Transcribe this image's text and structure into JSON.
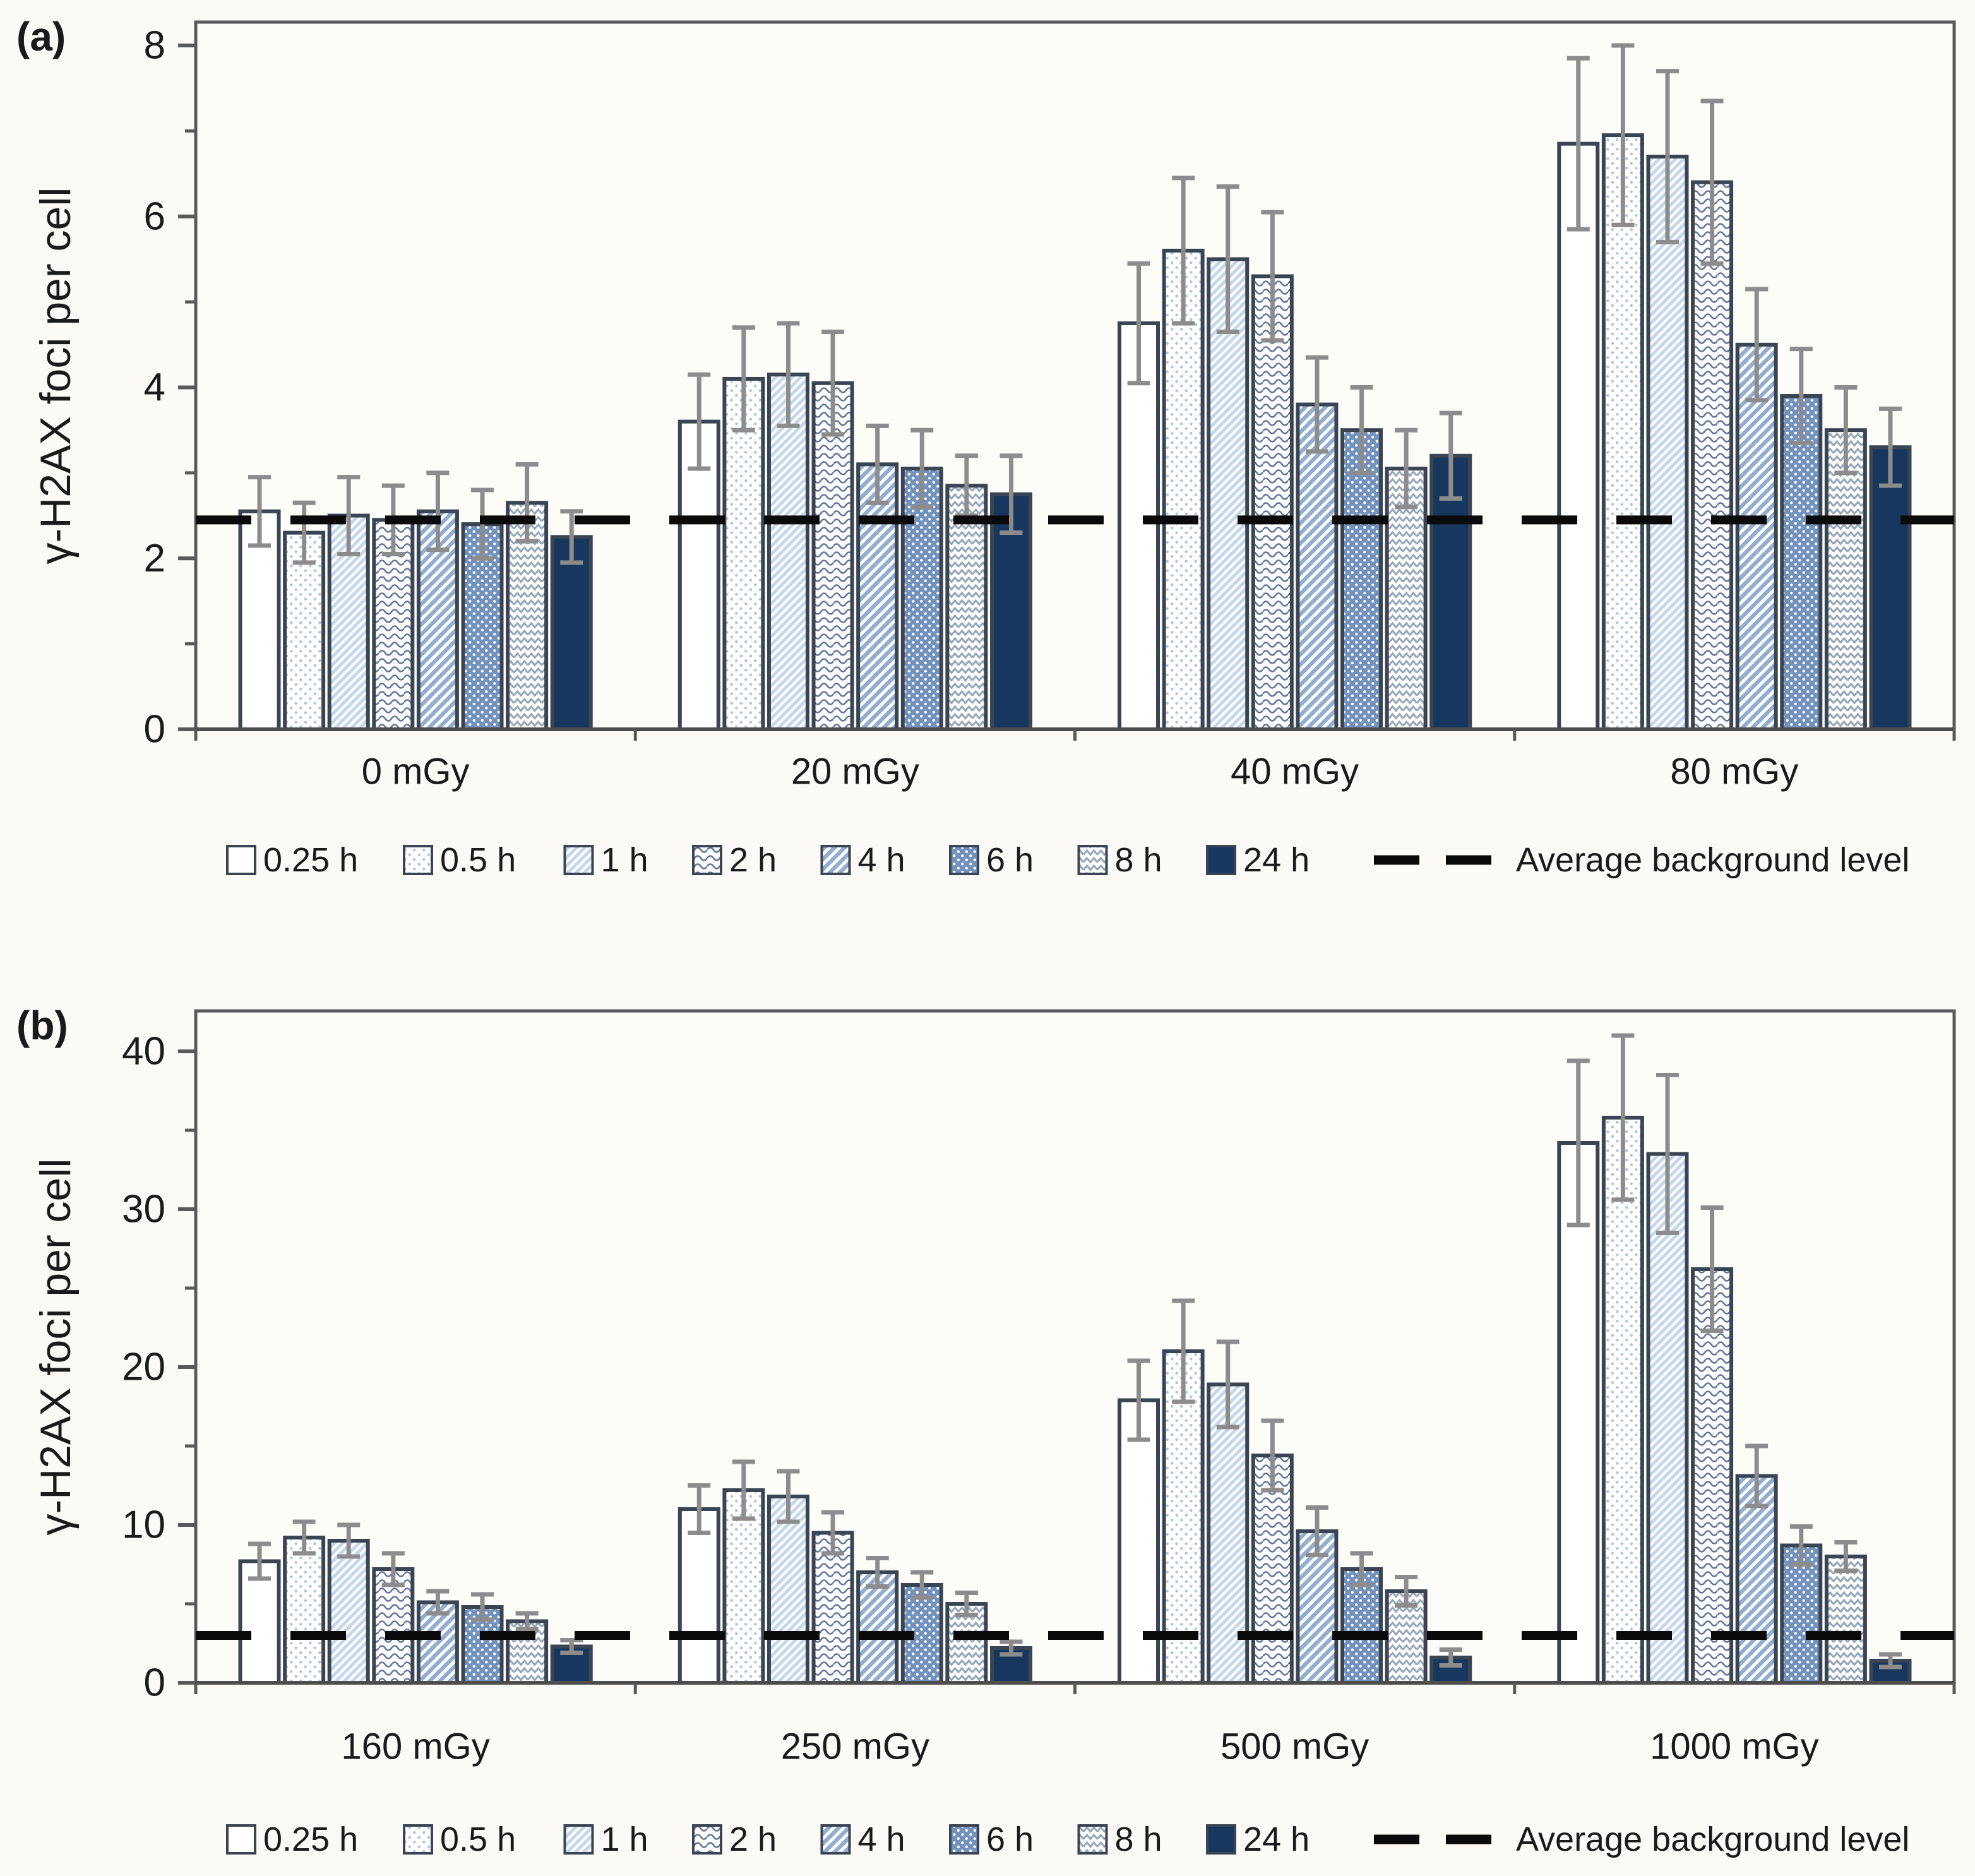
{
  "figure": {
    "panel_a_label": "(a)",
    "panel_b_label": "(b)",
    "y_axis_label": "γ-H2AX foci per cell"
  },
  "legend": {
    "entries": [
      {
        "label": "0.25 h",
        "pattern": "plain-white"
      },
      {
        "label": "0.5 h",
        "pattern": "dots-light"
      },
      {
        "label": "1 h",
        "pattern": "diag-light"
      },
      {
        "label": "2 h",
        "pattern": "squiggle"
      },
      {
        "label": "4 h",
        "pattern": "diag-blue"
      },
      {
        "label": "6 h",
        "pattern": "dots-blue"
      },
      {
        "label": "8 h",
        "pattern": "chevron"
      },
      {
        "label": "24 h",
        "pattern": "solid-navy"
      }
    ],
    "dashed_label": "Average background level"
  },
  "colors": {
    "navy": "#17375e",
    "medium_blue": "#7291bd",
    "steel_blue": "#92adcf",
    "light_blue": "#c7d7eb",
    "pale_dot": "#b3c6e0",
    "squiggle_stroke": "#61759a",
    "chevron_stroke": "#97a6ba",
    "bar_outline": "#3a4452",
    "error_bar": "#8c8c8c",
    "axis": "#595959",
    "dashed_line": "#0a0a0a",
    "background": "#fbfaf6"
  },
  "chart_data": [
    {
      "type": "bar",
      "panel": "a",
      "ylabel": "γ-H2AX foci per cell",
      "categories": [
        "0 mGy",
        "20 mGy",
        "40 mGy",
        "80 mGy"
      ],
      "series": [
        {
          "name": "0.25 h",
          "pattern": "plain-white",
          "values": [
            2.55,
            3.6,
            4.75,
            6.85
          ],
          "errors": [
            0.4,
            0.55,
            0.7,
            1.0
          ]
        },
        {
          "name": "0.5 h",
          "pattern": "dots-light",
          "values": [
            2.3,
            4.1,
            5.6,
            6.95
          ],
          "errors": [
            0.35,
            0.6,
            0.85,
            1.05
          ]
        },
        {
          "name": "1 h",
          "pattern": "diag-light",
          "values": [
            2.5,
            4.15,
            5.5,
            6.7
          ],
          "errors": [
            0.45,
            0.6,
            0.85,
            1.0
          ]
        },
        {
          "name": "2 h",
          "pattern": "squiggle",
          "values": [
            2.45,
            4.05,
            5.3,
            6.4
          ],
          "errors": [
            0.4,
            0.6,
            0.75,
            0.95
          ]
        },
        {
          "name": "4 h",
          "pattern": "diag-blue",
          "values": [
            2.55,
            3.1,
            3.8,
            4.5
          ],
          "errors": [
            0.45,
            0.45,
            0.55,
            0.65
          ]
        },
        {
          "name": "6 h",
          "pattern": "dots-blue",
          "values": [
            2.4,
            3.05,
            3.5,
            3.9
          ],
          "errors": [
            0.4,
            0.45,
            0.5,
            0.55
          ]
        },
        {
          "name": "8 h",
          "pattern": "chevron",
          "values": [
            2.65,
            2.85,
            3.05,
            3.5
          ],
          "errors": [
            0.45,
            0.35,
            0.45,
            0.5
          ]
        },
        {
          "name": "24 h",
          "pattern": "solid-navy",
          "values": [
            2.25,
            2.75,
            3.2,
            3.3
          ],
          "errors": [
            0.3,
            0.45,
            0.5,
            0.45
          ]
        }
      ],
      "baseline": {
        "label": "Average background level",
        "value": 2.45
      },
      "ylim": [
        0,
        8.27
      ],
      "yticks_major": [
        0,
        2,
        4,
        6,
        8
      ],
      "yticks_minor": [
        1,
        3,
        5,
        7
      ],
      "legend_position": "bottom",
      "grid": false
    },
    {
      "type": "bar",
      "panel": "b",
      "ylabel": "γ-H2AX foci per cell",
      "categories": [
        "160 mGy",
        "250 mGy",
        "500 mGy",
        "1000 mGy"
      ],
      "series": [
        {
          "name": "0.25 h",
          "pattern": "plain-white",
          "values": [
            7.7,
            11.0,
            17.9,
            34.2
          ],
          "errors": [
            1.1,
            1.5,
            2.5,
            5.2
          ]
        },
        {
          "name": "0.5 h",
          "pattern": "dots-light",
          "values": [
            9.2,
            12.2,
            21.0,
            35.8
          ],
          "errors": [
            1.0,
            1.8,
            3.2,
            5.2
          ]
        },
        {
          "name": "1 h",
          "pattern": "diag-light",
          "values": [
            9.0,
            11.8,
            18.9,
            33.5
          ],
          "errors": [
            1.0,
            1.6,
            2.7,
            5.0
          ]
        },
        {
          "name": "2 h",
          "pattern": "squiggle",
          "values": [
            7.2,
            9.5,
            14.4,
            26.2
          ],
          "errors": [
            1.0,
            1.3,
            2.2,
            3.9
          ]
        },
        {
          "name": "4 h",
          "pattern": "diag-blue",
          "values": [
            5.1,
            7.0,
            9.6,
            13.1
          ],
          "errors": [
            0.7,
            0.9,
            1.5,
            1.9
          ]
        },
        {
          "name": "6 h",
          "pattern": "dots-blue",
          "values": [
            4.8,
            6.2,
            7.2,
            8.7
          ],
          "errors": [
            0.8,
            0.8,
            1.0,
            1.2
          ]
        },
        {
          "name": "8 h",
          "pattern": "chevron",
          "values": [
            3.9,
            5.0,
            5.8,
            8.0
          ],
          "errors": [
            0.5,
            0.7,
            0.9,
            0.9
          ]
        },
        {
          "name": "24 h",
          "pattern": "solid-navy",
          "values": [
            2.3,
            2.2,
            1.6,
            1.4
          ],
          "errors": [
            0.4,
            0.4,
            0.5,
            0.4
          ]
        }
      ],
      "baseline": {
        "label": "Average background level",
        "value": 3.0
      },
      "ylim": [
        0,
        42.5
      ],
      "yticks_major": [
        0,
        10,
        20,
        30,
        40
      ],
      "yticks_minor": [
        5,
        15,
        25,
        35
      ],
      "legend_position": "bottom",
      "grid": false
    }
  ]
}
